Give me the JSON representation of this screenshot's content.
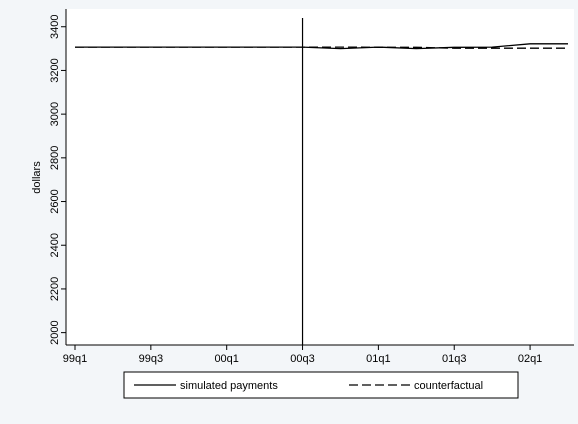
{
  "chart_data": {
    "type": "line",
    "title": "",
    "xlabel": "",
    "ylabel": "dollars",
    "x_ticks": [
      "99q1",
      "99q3",
      "00q1",
      "00q3",
      "01q1",
      "01q3",
      "02q1"
    ],
    "x_tick_index": [
      0,
      2,
      4,
      6,
      8,
      10,
      12
    ],
    "x_range": [
      0,
      13
    ],
    "ylim": [
      1980,
      3440
    ],
    "y_ticks": [
      2000,
      2200,
      2400,
      2600,
      2800,
      3000,
      3200,
      3400
    ],
    "y_tick_labels": [
      "2000",
      "2200",
      "2400",
      "2600",
      "2800",
      "3000",
      "3200",
      "3400"
    ],
    "vertical_line_at": 6,
    "grid": false,
    "legend_position": "bottom",
    "series": [
      {
        "name": "simulated payments",
        "style": "solid",
        "color": "#000000",
        "x": [
          0,
          1,
          2,
          3,
          4,
          5,
          6,
          7,
          8,
          9,
          10,
          11,
          12,
          13
        ],
        "values": [
          3307,
          3307,
          3307,
          3307,
          3307,
          3307,
          3307,
          3300,
          3307,
          3300,
          3306,
          3307,
          3322,
          3322
        ]
      },
      {
        "name": "counterfactual",
        "style": "dashed",
        "color": "#000000",
        "x": [
          0,
          1,
          2,
          3,
          4,
          5,
          6,
          7,
          8,
          9,
          10,
          11,
          12,
          13
        ],
        "values": [
          3307,
          3307,
          3307,
          3307,
          3307,
          3307,
          3307,
          3307,
          3306,
          3306,
          3302,
          3302,
          3302,
          3302
        ]
      }
    ]
  }
}
